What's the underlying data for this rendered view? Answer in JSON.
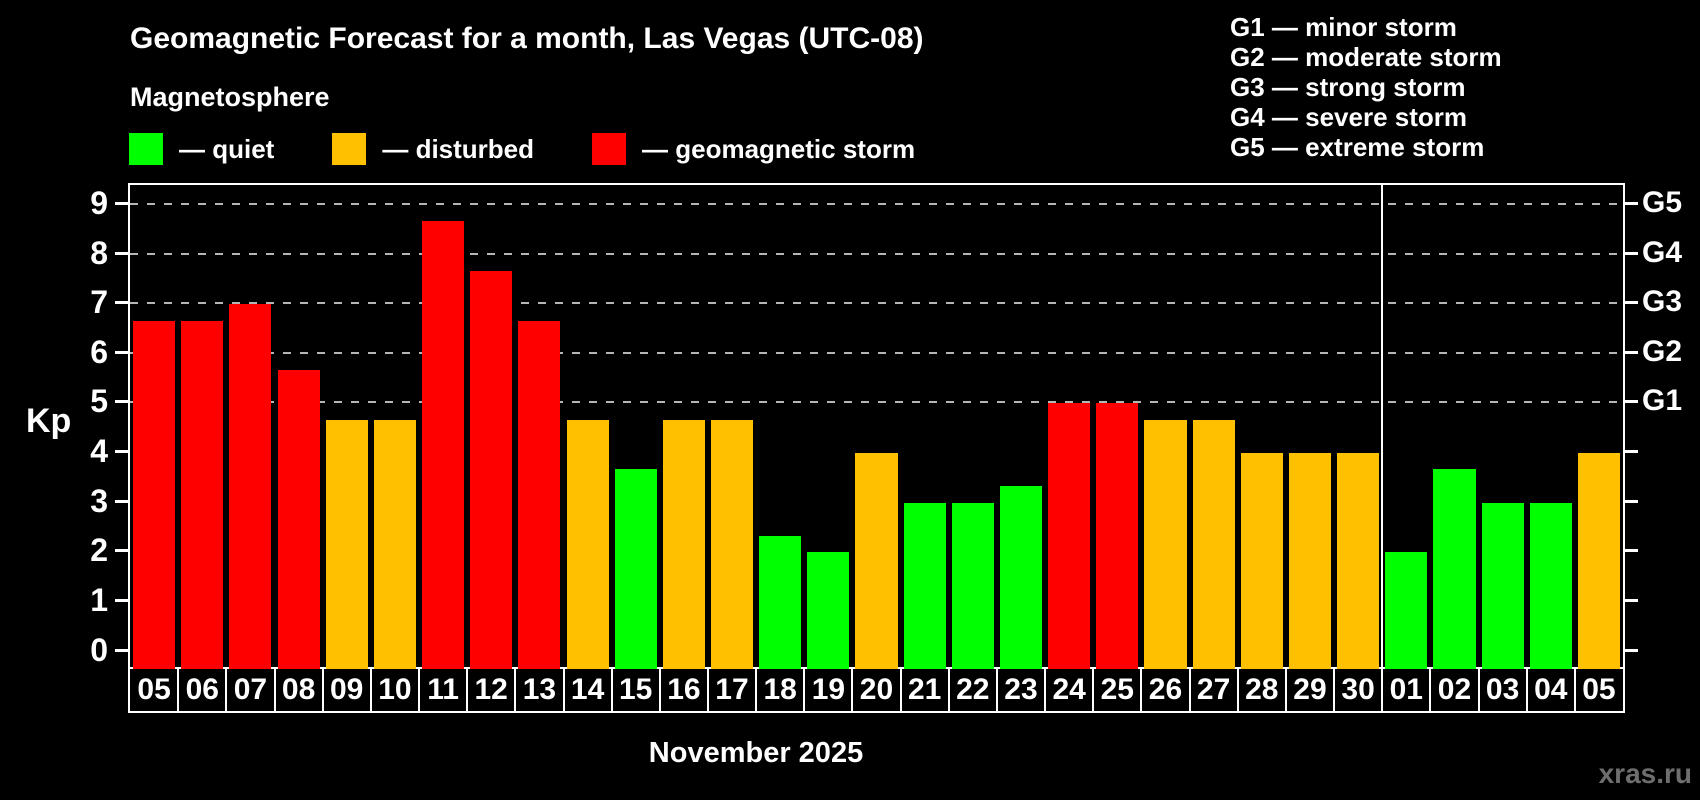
{
  "header": {
    "title": "Geomagnetic Forecast for a month, Las Vegas (UTC-08)",
    "subtitle": "Magnetosphere"
  },
  "legend": {
    "items": [
      {
        "id": "quiet",
        "label": "— quiet",
        "color": "#00ff00"
      },
      {
        "id": "disturbed",
        "label": "— disturbed",
        "color": "#ffc000"
      },
      {
        "id": "storm",
        "label": "— geomagnetic storm",
        "color": "#ff0000"
      }
    ]
  },
  "g_legend": {
    "lines": [
      "G1 — minor storm",
      "G2 — moderate storm",
      "G3 — strong storm",
      "G4 — severe storm",
      "G5 — extreme storm"
    ]
  },
  "axis": {
    "y_label": "Kp",
    "y_ticks": [
      0,
      1,
      2,
      3,
      4,
      5,
      6,
      7,
      8,
      9
    ],
    "g_levels": [
      {
        "label": "G1",
        "value": 5
      },
      {
        "label": "G2",
        "value": 6
      },
      {
        "label": "G3",
        "value": 7
      },
      {
        "label": "G4",
        "value": 8
      },
      {
        "label": "G5",
        "value": 9
      }
    ]
  },
  "footer": {
    "month_label": "November 2025",
    "watermark": "xras.ru"
  },
  "colors": {
    "quiet": "#00ff00",
    "disturbed": "#ffc000",
    "storm": "#ff0000",
    "grid": "#b5b5b5",
    "axis": "#ffffff",
    "background": "#000000",
    "watermark": "#6e6e6e"
  },
  "chart_data": {
    "type": "bar",
    "title": "Geomagnetic Forecast for a month, Las Vegas (UTC-08)",
    "xlabel": "November 2025",
    "ylabel": "Kp",
    "ylim": [
      0,
      9
    ],
    "grid": "dashed horizontal at Kp 5-9 only",
    "legend_position": "top-left and top-right",
    "gridlines": [
      5,
      6,
      7,
      8,
      9
    ],
    "categories": [
      "05",
      "06",
      "07",
      "08",
      "09",
      "10",
      "11",
      "12",
      "13",
      "14",
      "15",
      "16",
      "17",
      "18",
      "19",
      "20",
      "21",
      "22",
      "23",
      "24",
      "25",
      "26",
      "27",
      "28",
      "29",
      "30",
      "01",
      "02",
      "03",
      "04",
      "05"
    ],
    "values": [
      6.67,
      6.67,
      7,
      5.67,
      4.67,
      4.67,
      8.67,
      7.67,
      6.67,
      4.67,
      3.67,
      4.67,
      4.67,
      2.33,
      2,
      4,
      3,
      3,
      3.33,
      5,
      5,
      4.67,
      4.67,
      4,
      4,
      4,
      2,
      3.67,
      3,
      3,
      4
    ],
    "statuses": [
      "storm",
      "storm",
      "storm",
      "storm",
      "disturbed",
      "disturbed",
      "storm",
      "storm",
      "storm",
      "disturbed",
      "quiet",
      "disturbed",
      "disturbed",
      "quiet",
      "quiet",
      "disturbed",
      "quiet",
      "quiet",
      "quiet",
      "storm",
      "storm",
      "disturbed",
      "disturbed",
      "disturbed",
      "disturbed",
      "disturbed",
      "quiet",
      "quiet",
      "quiet",
      "quiet",
      "disturbed"
    ],
    "month_boundary_after_index": 25
  }
}
